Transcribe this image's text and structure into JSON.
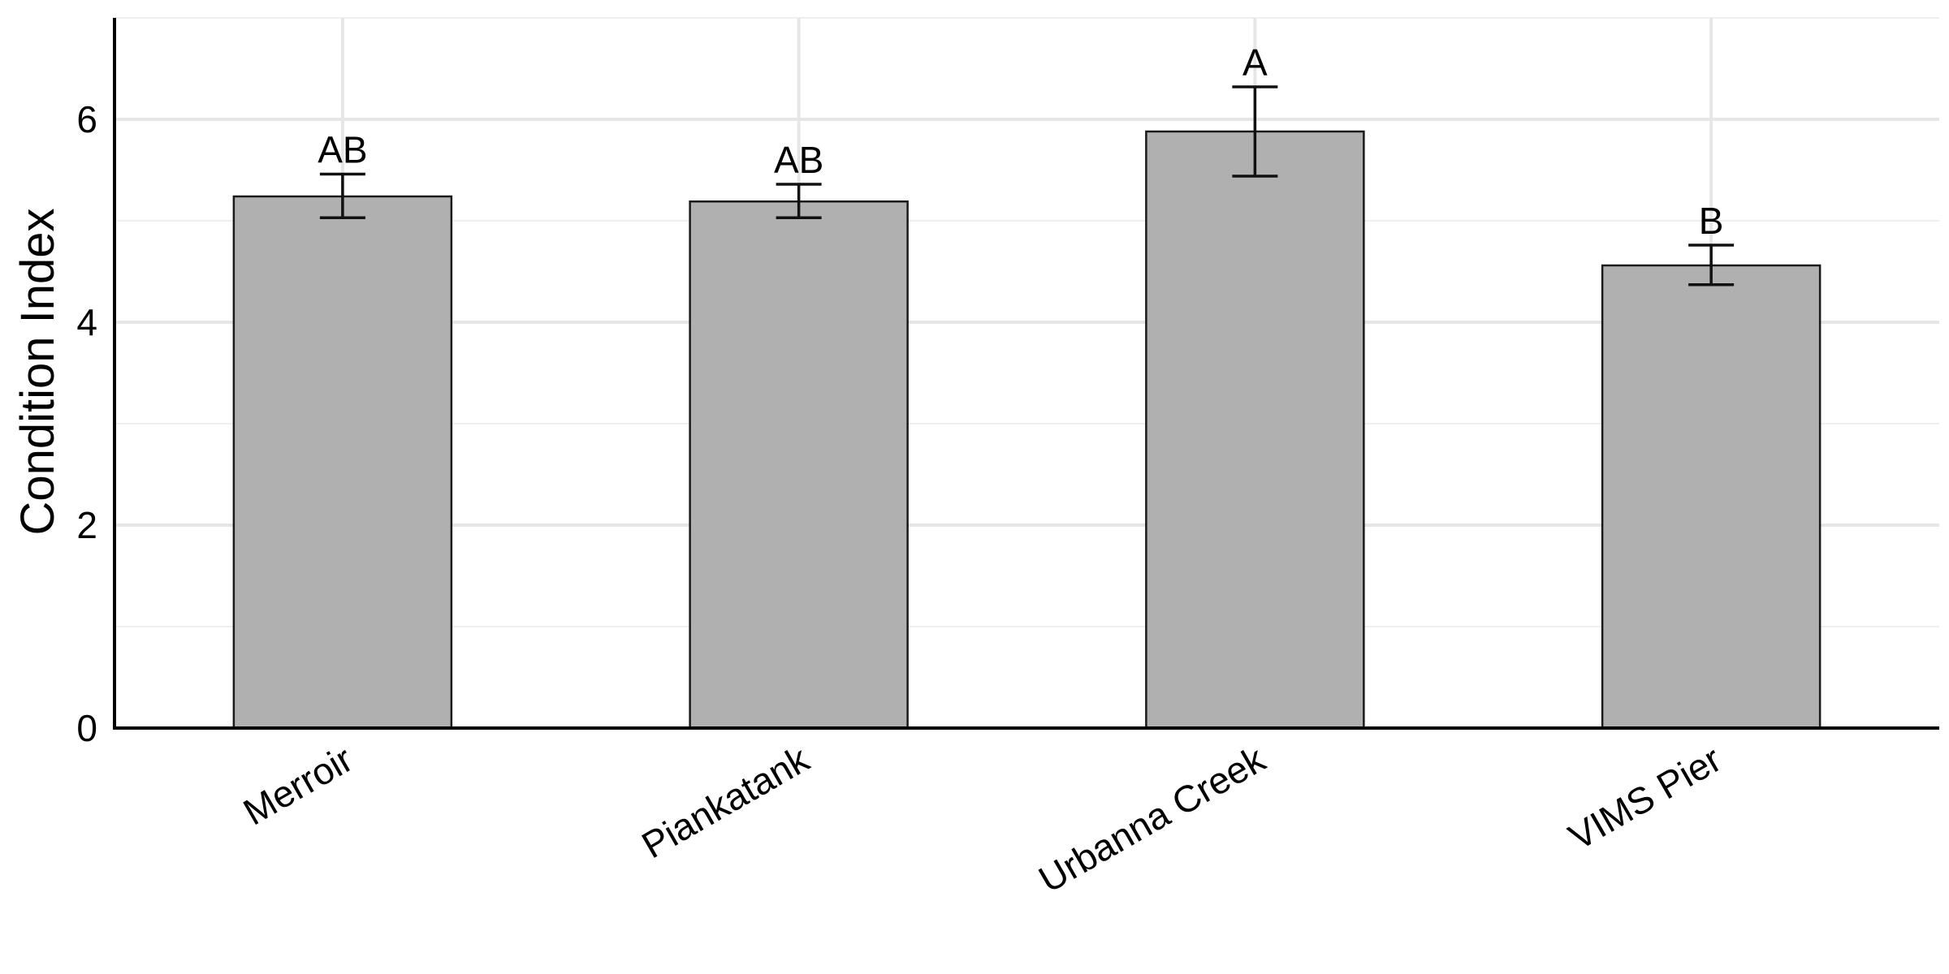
{
  "chart_data": {
    "type": "bar",
    "ylabel": "Condition Index",
    "xlabel": "",
    "ylim": [
      0,
      7
    ],
    "y_ticks": [
      0,
      2,
      4,
      6
    ],
    "y_tick_labels": [
      "0",
      "2",
      "4",
      "6"
    ],
    "grid": true,
    "categories": [
      "Merroir",
      "Piankatank",
      "Urbanna Creek",
      "VIMS Pier"
    ],
    "values": [
      5.24,
      5.19,
      5.88,
      4.56
    ],
    "error_low": [
      5.03,
      5.03,
      5.44,
      4.37
    ],
    "error_high": [
      5.46,
      5.36,
      6.32,
      4.76
    ],
    "significance_labels": [
      "AB",
      "AB",
      "A",
      "B"
    ],
    "colors": {
      "bar_fill": "#b0b0b0",
      "bar_stroke": "#1a1a1a",
      "grid_major": "#e6e6e6",
      "grid_minor": "#efefef",
      "axis": "#000000"
    }
  }
}
